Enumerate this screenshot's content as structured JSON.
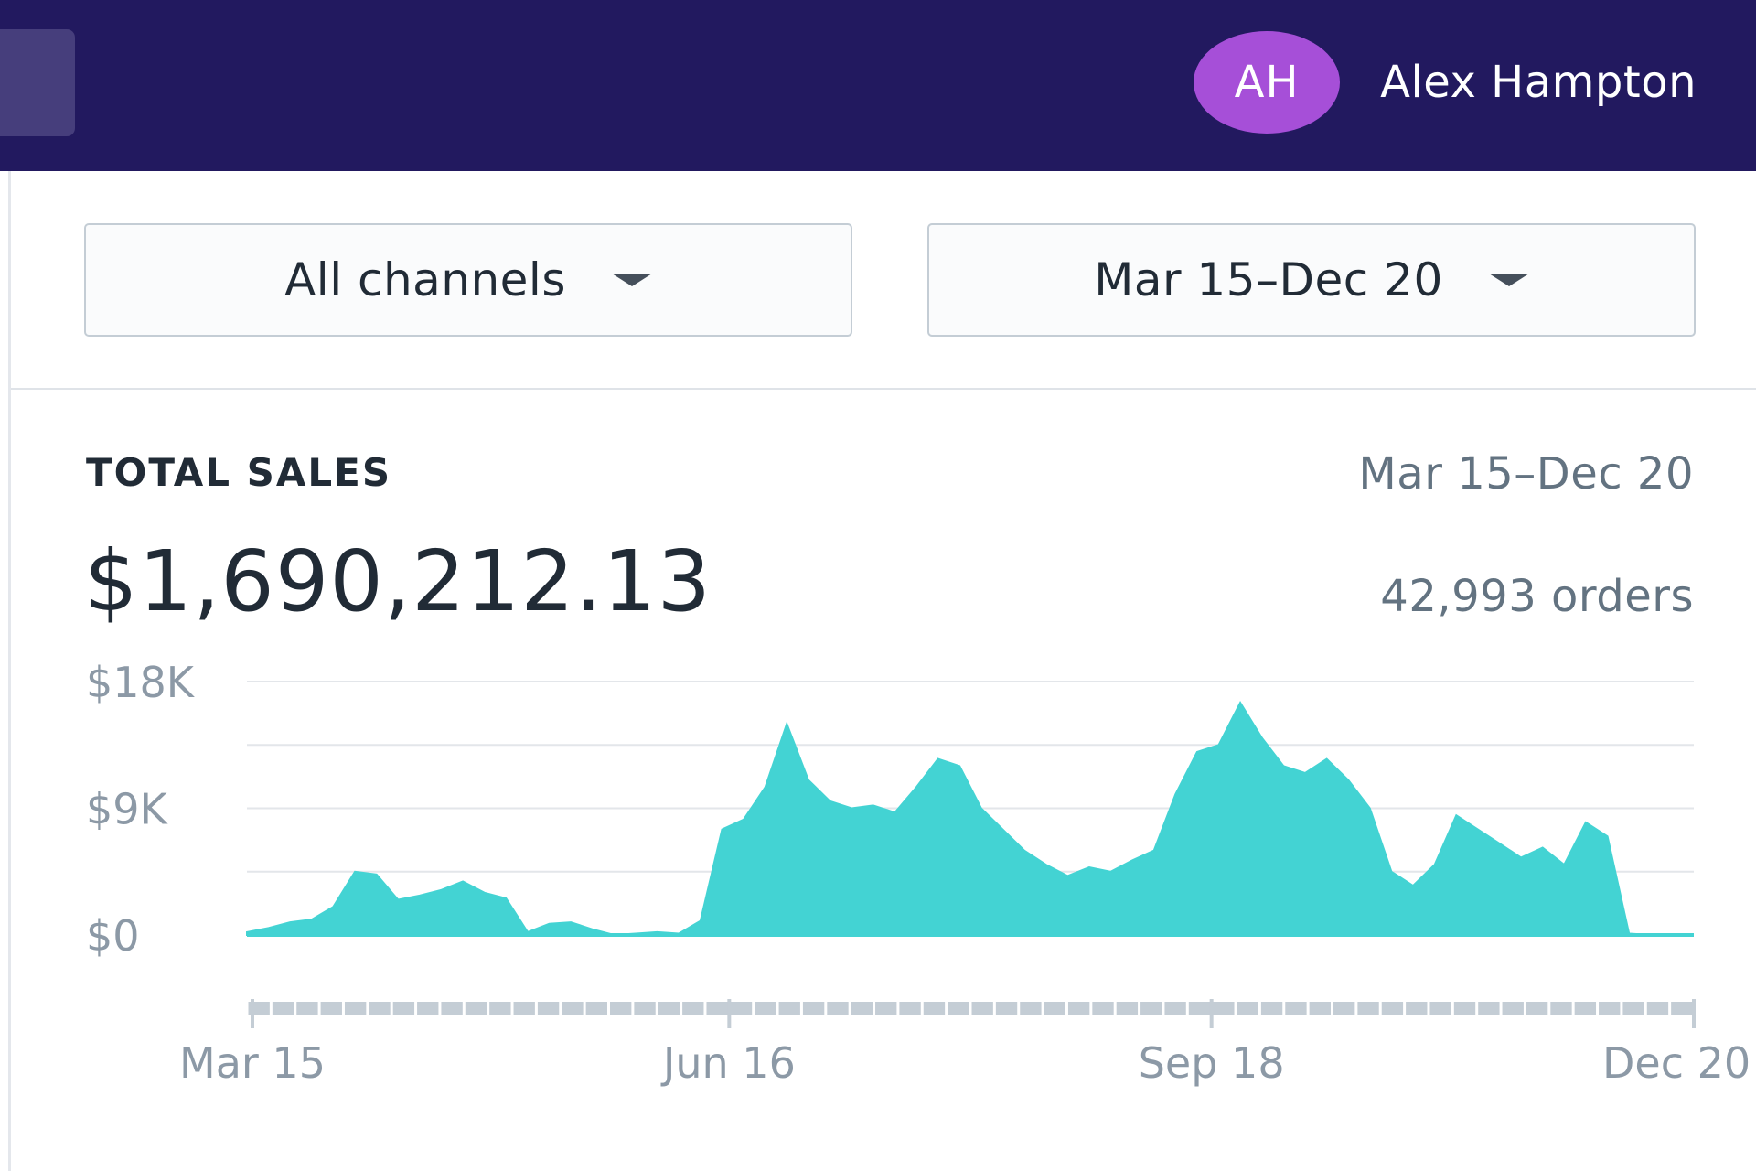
{
  "user": {
    "initials": "AH",
    "name": "Alex Hampton"
  },
  "filters": {
    "channel_label": "All channels",
    "date_label": "Mar 15–Dec 20"
  },
  "card": {
    "title": "TOTAL SALES",
    "range": "Mar 15–Dec 20",
    "total": "$1,690,212.13",
    "orders": "42,993 orders"
  },
  "colors": {
    "header": "#22195f",
    "avatar": "#a64fd8",
    "series": "#43d3d3"
  },
  "chart_data": {
    "type": "area",
    "title": "",
    "xlabel": "",
    "ylabel": "",
    "x_ticks": [
      "Mar 15",
      "Jun 16",
      "Sep 18",
      "Dec 20"
    ],
    "y_ticks": [
      "$18K",
      "$9K",
      "$0"
    ],
    "ylim": [
      0,
      18000
    ],
    "grid": true,
    "x_range": [
      "Mar 15",
      "Dec 20"
    ],
    "sample_interval": "weekly",
    "series": [
      {
        "values": [
          200,
          500,
          900,
          1100,
          2000,
          4500,
          4300,
          2500,
          2800,
          3200,
          3800,
          3000,
          2600,
          200,
          800,
          900,
          400,
          0,
          100,
          200,
          100,
          1000,
          7500,
          8200,
          10500,
          15000,
          11000,
          9500,
          9000,
          9200,
          8700,
          10500,
          12500,
          12000,
          9000,
          7500,
          6000,
          5000,
          4200,
          4800,
          4500,
          5300,
          6000,
          10000,
          13000,
          13500,
          16500,
          14000,
          12000,
          11500,
          12500,
          11000,
          9000,
          4500,
          3500,
          5000,
          8500,
          7500,
          6500,
          5500,
          6200,
          5000,
          8000,
          7000,
          100,
          0,
          0,
          0
        ]
      }
    ]
  }
}
